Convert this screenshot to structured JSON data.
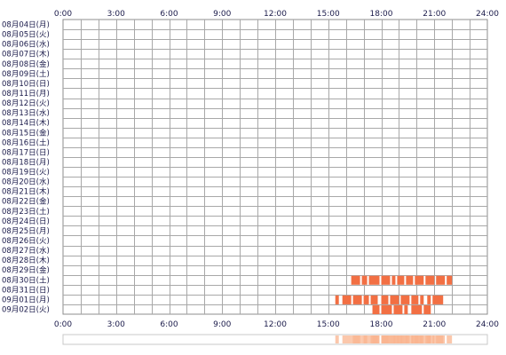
{
  "chart_data": {
    "type": "heatmap",
    "title": "",
    "xlabel": "",
    "ylabel": "",
    "x_ticks": [
      "0:00",
      "3:00",
      "6:00",
      "9:00",
      "12:00",
      "15:00",
      "18:00",
      "21:00",
      "24:00"
    ],
    "x_range_hours": [
      0,
      24
    ],
    "grid": true,
    "rows": [
      "08月04日(月)",
      "08月05日(火)",
      "08月06日(水)",
      "08月07日(木)",
      "08月08日(金)",
      "08月09日(土)",
      "08月10日(日)",
      "08月11日(月)",
      "08月12日(火)",
      "08月13日(水)",
      "08月14日(木)",
      "08月15日(金)",
      "08月16日(土)",
      "08月17日(日)",
      "08月18日(月)",
      "08月19日(火)",
      "08月20日(水)",
      "08月21日(木)",
      "08月22日(金)",
      "08月23日(土)",
      "08月24日(日)",
      "08月25日(月)",
      "08月26日(火)",
      "08月27日(水)",
      "08月28日(木)",
      "08月29日(金)",
      "08月30日(土)",
      "08月31日(日)",
      "09月01日(月)",
      "09月02日(火)"
    ],
    "activity_color": "#f26f43",
    "summary_color": "#f9b48f",
    "activity": [
      {
        "row": 26,
        "segments": [
          [
            16.3,
            16.8
          ],
          [
            16.9,
            17.2
          ],
          [
            17.3,
            17.9
          ],
          [
            18.0,
            18.5
          ],
          [
            18.6,
            18.8
          ],
          [
            18.9,
            19.3
          ],
          [
            19.4,
            19.8
          ],
          [
            19.9,
            20.4
          ],
          [
            20.5,
            21.0
          ],
          [
            21.1,
            21.6
          ],
          [
            21.7,
            22.0
          ]
        ]
      },
      {
        "row": 27,
        "segments": []
      },
      {
        "row": 28,
        "segments": [
          [
            15.4,
            15.6
          ],
          [
            15.8,
            16.3
          ],
          [
            16.4,
            16.9
          ],
          [
            17.0,
            17.3
          ],
          [
            17.4,
            17.8
          ],
          [
            18.0,
            18.4
          ],
          [
            18.5,
            19.0
          ],
          [
            19.1,
            19.6
          ],
          [
            19.7,
            20.1
          ],
          [
            20.2,
            20.4
          ],
          [
            20.6,
            20.8
          ],
          [
            20.9,
            21.5
          ]
        ]
      },
      {
        "row": 29,
        "segments": [
          [
            17.5,
            17.9
          ],
          [
            18.0,
            18.6
          ],
          [
            18.7,
            19.2
          ],
          [
            19.3,
            19.5
          ],
          [
            19.7,
            20.3
          ],
          [
            20.4,
            20.8
          ]
        ]
      }
    ]
  }
}
